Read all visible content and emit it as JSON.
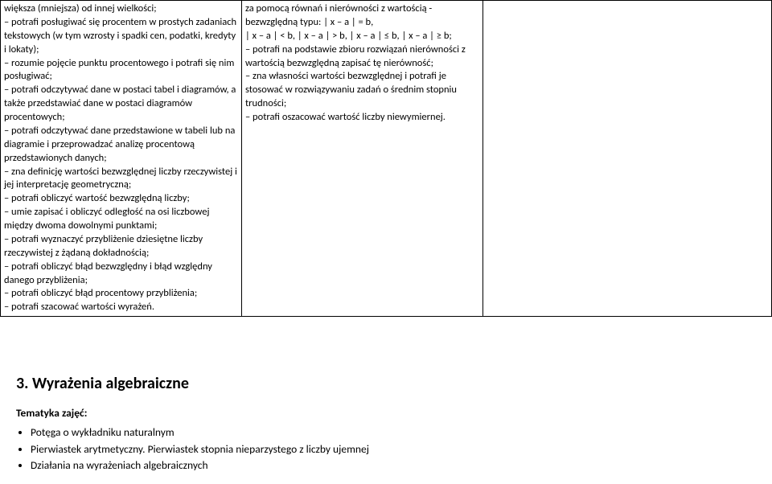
{
  "table": {
    "col1": {
      "lines": [
        "większa (mniejsza) od innej wielkości;",
        "– potrafi posługiwać się procentem w prostych zadaniach tekstowych (w tym wzrosty i spadki cen, podatki, kredyty i lokaty);",
        "– rozumie pojęcie punktu procentowego i potrafi się nim posługiwać;",
        "– potrafi odczytywać dane w postaci tabel i diagramów, a także przedstawiać dane w postaci diagramów procentowych;",
        "– potrafi odczytywać dane przedstawione w tabeli lub na diagramie i przeprowadzać analizę procentową przedstawionych danych;",
        "– zna definicję wartości bezwzględnej liczby rzeczywistej i jej interpretację geometryczną;",
        "– potrafi obliczyć wartość bezwzględną liczby;",
        "– umie zapisać i obliczyć odległość na osi liczbowej między dwoma dowolnymi punktami;",
        "– potrafi wyznaczyć przybliżenie dziesiętne liczby rzeczywistej z żądaną dokładnością;",
        "– potrafi obliczyć błąd bezwzględny i błąd względny danego przybliżenia;",
        "– potrafi obliczyć błąd procentowy przybliżenia;",
        "– potrafi szacować wartości wyrażeń."
      ]
    },
    "col2": {
      "lines": [
        "za pomocą równań i nierówności z wartością - bezwzględną typu: | x – a | = b,",
        "| x – a | < b, | x – a | > b, | x – a | ≤ b, | x – a | ≥ b;",
        "– potrafi na podstawie zbioru rozwiązań nierówności z wartością bezwzględną zapisać tę nierówność;",
        "– zna własności wartości bezwzględnej i potrafi je stosować w rozwiązywaniu zadań o średnim stopniu trudności;",
        "– potrafi oszacować wartość liczby niewymiernej."
      ]
    }
  },
  "section": {
    "title": "3. Wyrażenia algebraiczne",
    "subtitle": "Tematyka zajęć:",
    "topics": [
      "Potęga o wykładniku naturalnym",
      "Pierwiastek arytmetyczny. Pierwiastek stopnia nieparzystego z liczby ujemnej",
      "Działania na wyrażeniach algebraicznych"
    ]
  }
}
